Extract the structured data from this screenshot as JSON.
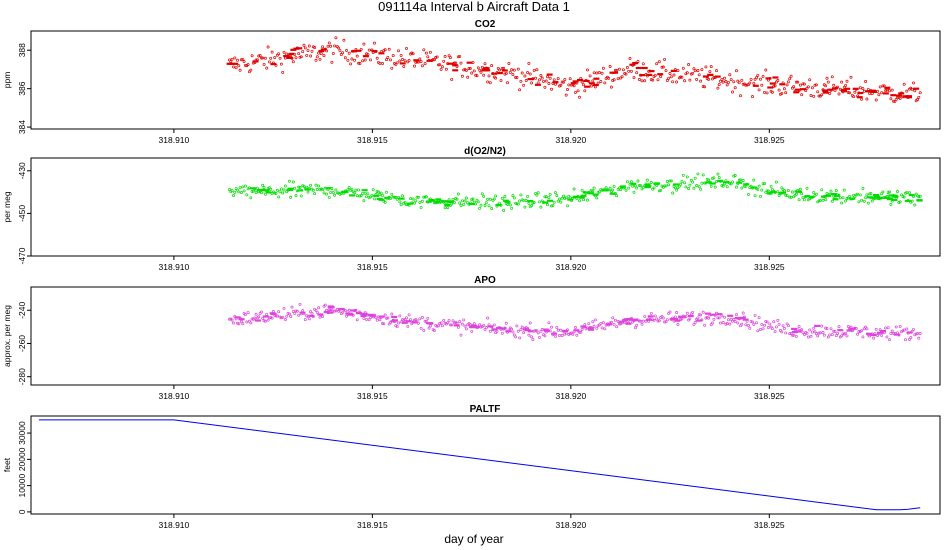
{
  "figure": {
    "title": "091114a   Interval b Aircraft Data 1",
    "xlabel": "day of year"
  },
  "chart_data": [
    {
      "type": "scatter",
      "title": "CO2",
      "ylabel": "ppm",
      "color": "#e00000",
      "xlim": [
        318.9064,
        318.9293
      ],
      "ylim": [
        383.9,
        389.0
      ],
      "xticks": [
        318.91,
        318.915,
        318.92,
        318.925
      ],
      "xtick_labels": [
        "318.910",
        "318.915",
        "318.920",
        "318.925"
      ],
      "yticks": [
        384,
        386,
        388
      ],
      "ytick_labels": [
        "384",
        "386",
        "388"
      ],
      "x_start": 318.9114,
      "x_end": 318.9288,
      "trend": [
        [
          318.9114,
          387.2
        ],
        [
          318.914,
          388.0
        ],
        [
          318.916,
          387.5
        ],
        [
          318.9185,
          386.8
        ],
        [
          318.92,
          386.1
        ],
        [
          318.9215,
          387.0
        ],
        [
          318.925,
          386.2
        ],
        [
          318.9288,
          385.7
        ]
      ],
      "noise": 0.7
    },
    {
      "type": "scatter",
      "title": "d(O2/N2)",
      "ylabel": "per meg",
      "color": "#00dd00",
      "xlim": [
        318.9064,
        318.9293
      ],
      "ylim": [
        -470,
        -424
      ],
      "xticks": [
        318.91,
        318.915,
        318.92,
        318.925
      ],
      "xtick_labels": [
        "318.910",
        "318.915",
        "318.920",
        "318.925"
      ],
      "yticks": [
        -470,
        -450,
        -430
      ],
      "ytick_labels": [
        "-470",
        "-450",
        "-430"
      ],
      "x_start": 318.9114,
      "x_end": 318.9288,
      "trend": [
        [
          318.9114,
          -440
        ],
        [
          318.914,
          -439
        ],
        [
          318.916,
          -444
        ],
        [
          318.9185,
          -445
        ],
        [
          318.92,
          -443
        ],
        [
          318.9215,
          -437
        ],
        [
          318.924,
          -435
        ],
        [
          318.9255,
          -441
        ],
        [
          318.9288,
          -443
        ]
      ],
      "noise": 4
    },
    {
      "type": "scatter",
      "title": "APO",
      "ylabel": "approx. per meg",
      "color": "#dd44dd",
      "xlim": [
        318.9064,
        318.9293
      ],
      "ylim": [
        -285,
        -226
      ],
      "xticks": [
        318.91,
        318.915,
        318.92,
        318.925
      ],
      "xtick_labels": [
        "318.910",
        "318.915",
        "318.920",
        "318.925"
      ],
      "yticks": [
        -280,
        -260,
        -240
      ],
      "ytick_labels": [
        "-280",
        "-260",
        "-240"
      ],
      "x_start": 318.9114,
      "x_end": 318.9288,
      "trend": [
        [
          318.9114,
          -246
        ],
        [
          318.914,
          -240
        ],
        [
          318.916,
          -247
        ],
        [
          318.9185,
          -252
        ],
        [
          318.92,
          -253
        ],
        [
          318.9215,
          -246
        ],
        [
          318.924,
          -244
        ],
        [
          318.9255,
          -252
        ],
        [
          318.9288,
          -254
        ]
      ],
      "noise": 5
    },
    {
      "type": "line",
      "title": "PALTF",
      "ylabel": "feet",
      "color": "#0000ee",
      "xlim": [
        318.9064,
        318.9293
      ],
      "ylim": [
        -800,
        36500
      ],
      "xticks": [
        318.91,
        318.915,
        318.92,
        318.925
      ],
      "xtick_labels": [
        "318.910",
        "318.915",
        "318.920",
        "318.925"
      ],
      "yticks": [
        0,
        10000,
        20000,
        30000
      ],
      "ytick_labels": [
        "0",
        "10000",
        "20000",
        "30000"
      ],
      "x": [
        318.9066,
        318.91,
        318.9277,
        318.9283,
        318.9285,
        318.9288
      ],
      "y": [
        35000,
        35000,
        800,
        800,
        1000,
        1600
      ]
    }
  ]
}
